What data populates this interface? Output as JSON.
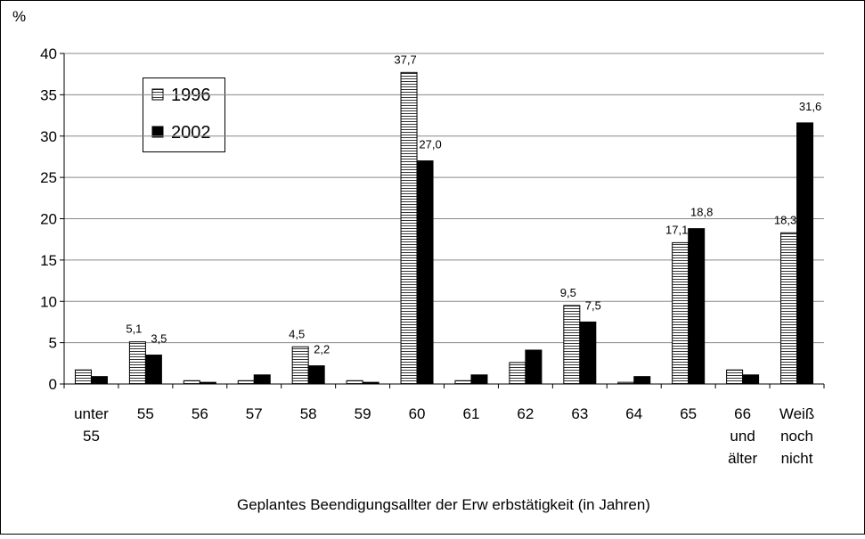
{
  "chart_data": {
    "type": "bar",
    "y_label": "%",
    "x_label": "Geplantes Beendigungsallter der Erw erbstätigkeit (in Jahren)",
    "categories": [
      "unter 55",
      "55",
      "56",
      "57",
      "58",
      "59",
      "60",
      "61",
      "62",
      "63",
      "64",
      "65",
      "66 und älter",
      "Weiß noch nicht"
    ],
    "series": [
      {
        "name": "1996",
        "color": "#ffffff",
        "hatch": true,
        "values": [
          1.7,
          5.1,
          0.4,
          0.4,
          4.5,
          0.4,
          37.7,
          0.4,
          2.6,
          9.5,
          0.2,
          17.1,
          1.7,
          18.3
        ],
        "value_labels": [
          null,
          "5,1",
          null,
          null,
          "4,5",
          null,
          "37,7",
          null,
          null,
          "9,5",
          null,
          "17,1",
          null,
          "18,3"
        ]
      },
      {
        "name": "2002",
        "color": "#000000",
        "hatch": false,
        "values": [
          0.9,
          3.5,
          0.2,
          1.1,
          2.2,
          0.2,
          27.0,
          1.1,
          4.1,
          7.5,
          0.9,
          18.8,
          1.1,
          31.6
        ],
        "value_labels": [
          null,
          "3,5",
          null,
          null,
          "2,2",
          null,
          "27,0",
          null,
          null,
          "7,5",
          null,
          "18,8",
          null,
          "31,6"
        ]
      }
    ],
    "ylim": [
      0,
      40
    ],
    "yticks": [
      0,
      5,
      10,
      15,
      20,
      25,
      30,
      35,
      40
    ],
    "grid": true,
    "legend": "upper-left"
  }
}
